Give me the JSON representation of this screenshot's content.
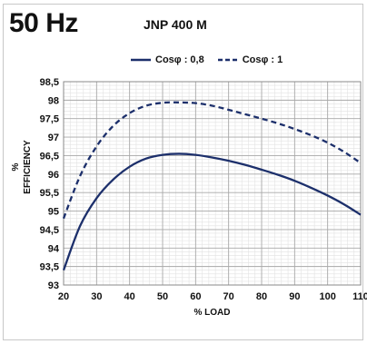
{
  "header": {
    "frequency": "50 Hz",
    "model": "JNP 400 M"
  },
  "chart_data": {
    "type": "line",
    "xlabel": "% LOAD",
    "ylabel": "% EFFICIENCY",
    "xlim": [
      20,
      110
    ],
    "ylim": [
      93,
      98.5
    ],
    "x_ticks": [
      "20",
      "30",
      "40",
      "50",
      "60",
      "70",
      "80",
      "90",
      "100",
      "110"
    ],
    "y_ticks": [
      "93",
      "93,5",
      "94",
      "94,5",
      "95",
      "95,5",
      "96",
      "96,5",
      "97",
      "97,5",
      "98",
      "98,5"
    ],
    "grid": true,
    "legend_position": "top-center",
    "series": [
      {
        "name": "Cosφ : 0,8",
        "style": "solid",
        "color": "#1c2f6b",
        "x": [
          20,
          25,
          30,
          35,
          40,
          45,
          50,
          55,
          60,
          65,
          70,
          75,
          80,
          85,
          90,
          95,
          100,
          105,
          110
        ],
        "y": [
          93.4,
          94.6,
          95.35,
          95.85,
          96.2,
          96.42,
          96.52,
          96.55,
          96.52,
          96.45,
          96.36,
          96.25,
          96.12,
          95.98,
          95.82,
          95.63,
          95.42,
          95.18,
          94.9
        ]
      },
      {
        "name": "Cosφ : 1",
        "style": "dashed",
        "color": "#1c2f6b",
        "x": [
          20,
          25,
          30,
          35,
          40,
          45,
          50,
          55,
          60,
          65,
          70,
          75,
          80,
          85,
          90,
          95,
          100,
          105,
          110
        ],
        "y": [
          94.8,
          95.95,
          96.75,
          97.3,
          97.65,
          97.85,
          97.93,
          97.94,
          97.92,
          97.85,
          97.74,
          97.62,
          97.5,
          97.37,
          97.22,
          97.05,
          96.85,
          96.6,
          96.3
        ]
      }
    ]
  }
}
